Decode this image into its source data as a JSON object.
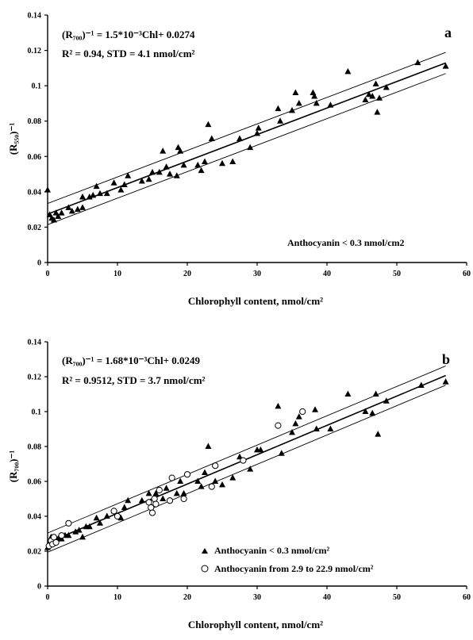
{
  "chart_data": [
    {
      "type": "scatter",
      "panel": "a",
      "xlabel": "Chlorophyll content, nmol/cm²",
      "ylabel": "(R₅₅₀)⁻¹",
      "xlim": [
        0,
        60
      ],
      "ylim": [
        0,
        0.14
      ],
      "xticks": [
        "0",
        "10",
        "20",
        "30",
        "40",
        "50",
        "60"
      ],
      "yticks": [
        "0",
        "0.02",
        "0.04",
        "0.06",
        "0.08",
        "0.1",
        "0.12",
        "0.14"
      ],
      "grid": false,
      "annotations": {
        "equation": "(R₇₀₀)⁻¹ = 1.5*10⁻³Chl+ 0.0274",
        "stats": "R² = 0.94, STD = 4.1 nmol/cm²",
        "note": "Anthocyanin < 0.3 nmol/cm2"
      },
      "fit": {
        "slope": 0.0015,
        "intercept": 0.0274,
        "band": 0.006
      },
      "series": [
        {
          "marker": "triangle",
          "points": [
            [
              0,
              0.041
            ],
            [
              0.3,
              0.027
            ],
            [
              0.6,
              0.025
            ],
            [
              0.9,
              0.024
            ],
            [
              1.2,
              0.028
            ],
            [
              1.5,
              0.026
            ],
            [
              2,
              0.028
            ],
            [
              3,
              0.031
            ],
            [
              3.5,
              0.029
            ],
            [
              4.3,
              0.03
            ],
            [
              5,
              0.031
            ],
            [
              5,
              0.037
            ],
            [
              6,
              0.037
            ],
            [
              6.5,
              0.038
            ],
            [
              7,
              0.043
            ],
            [
              7.5,
              0.039
            ],
            [
              8.5,
              0.039
            ],
            [
              9.5,
              0.045
            ],
            [
              10.5,
              0.041
            ],
            [
              11,
              0.044
            ],
            [
              11.5,
              0.049
            ],
            [
              13.5,
              0.046
            ],
            [
              14.5,
              0.047
            ],
            [
              15,
              0.051
            ],
            [
              16,
              0.051
            ],
            [
              16.5,
              0.063
            ],
            [
              17,
              0.054
            ],
            [
              17.5,
              0.05
            ],
            [
              18.5,
              0.049
            ],
            [
              18.7,
              0.065
            ],
            [
              19,
              0.063
            ],
            [
              19.5,
              0.055
            ],
            [
              21.5,
              0.055
            ],
            [
              22,
              0.052
            ],
            [
              22.5,
              0.057
            ],
            [
              23,
              0.078
            ],
            [
              23.5,
              0.07
            ],
            [
              25,
              0.056
            ],
            [
              26.5,
              0.057
            ],
            [
              27.5,
              0.07
            ],
            [
              29,
              0.065
            ],
            [
              30,
              0.073
            ],
            [
              30.2,
              0.076
            ],
            [
              33,
              0.087
            ],
            [
              33.3,
              0.08
            ],
            [
              35,
              0.086
            ],
            [
              35.5,
              0.096
            ],
            [
              36,
              0.09
            ],
            [
              38,
              0.096
            ],
            [
              38.2,
              0.094
            ],
            [
              38.5,
              0.09
            ],
            [
              40.5,
              0.089
            ],
            [
              43,
              0.108
            ],
            [
              45.5,
              0.092
            ],
            [
              46,
              0.095
            ],
            [
              46.5,
              0.094
            ],
            [
              47,
              0.101
            ],
            [
              47.2,
              0.085
            ],
            [
              47.5,
              0.093
            ],
            [
              48.5,
              0.099
            ],
            [
              53,
              0.113
            ],
            [
              57,
              0.111
            ]
          ]
        }
      ]
    },
    {
      "type": "scatter",
      "panel": "b",
      "xlabel": "Chlorophyll content, nmol/cm²",
      "ylabel": "(R₇₀₀)⁻¹",
      "xlim": [
        0,
        60
      ],
      "ylim": [
        0,
        0.14
      ],
      "xticks": [
        "0",
        "10",
        "20",
        "30",
        "40",
        "50",
        "60"
      ],
      "yticks": [
        "0",
        "0.02",
        "0.04",
        "0.06",
        "0.08",
        "0.1",
        "0.12",
        "0.14"
      ],
      "grid": false,
      "annotations": {
        "equation": "(R₇₀₀)⁻¹ = 1.68*10⁻³Chl+ 0.0249",
        "stats": "R² = 0.9512, STD = 3.7 nmol/cm²"
      },
      "fit": {
        "slope": 0.00168,
        "intercept": 0.0249,
        "band": 0.0055
      },
      "legend": {
        "position": "bottom-right",
        "entries": [
          {
            "marker": "triangle",
            "label": "Anthocyanin < 0.3 nmol/cm²"
          },
          {
            "marker": "circle",
            "label": "Anthocyanin from 2.9 to 22.9 nmol/cm²"
          }
        ]
      },
      "series": [
        {
          "marker": "triangle",
          "points": [
            [
              0,
              0.022
            ],
            [
              0.5,
              0.028
            ],
            [
              1,
              0.025
            ],
            [
              1.5,
              0.027
            ],
            [
              2,
              0.027
            ],
            [
              2.5,
              0.029
            ],
            [
              3,
              0.029
            ],
            [
              4,
              0.031
            ],
            [
              4.5,
              0.032
            ],
            [
              5,
              0.028
            ],
            [
              5.5,
              0.034
            ],
            [
              6,
              0.034
            ],
            [
              7,
              0.039
            ],
            [
              7.5,
              0.036
            ],
            [
              8.5,
              0.04
            ],
            [
              9.5,
              0.043
            ],
            [
              10.5,
              0.039
            ],
            [
              11,
              0.045
            ],
            [
              11.5,
              0.049
            ],
            [
              13.5,
              0.049
            ],
            [
              14.5,
              0.053
            ],
            [
              15.5,
              0.053
            ],
            [
              16.5,
              0.05
            ],
            [
              17,
              0.056
            ],
            [
              18.5,
              0.053
            ],
            [
              19,
              0.06
            ],
            [
              19.5,
              0.053
            ],
            [
              21.5,
              0.06
            ],
            [
              22,
              0.057
            ],
            [
              22.5,
              0.065
            ],
            [
              23,
              0.08
            ],
            [
              24,
              0.06
            ],
            [
              25,
              0.058
            ],
            [
              26.5,
              0.062
            ],
            [
              27.5,
              0.074
            ],
            [
              29,
              0.067
            ],
            [
              30,
              0.078
            ],
            [
              30.5,
              0.078
            ],
            [
              33,
              0.103
            ],
            [
              33.5,
              0.076
            ],
            [
              35,
              0.088
            ],
            [
              35.5,
              0.093
            ],
            [
              36,
              0.097
            ],
            [
              38.3,
              0.101
            ],
            [
              38.5,
              0.09
            ],
            [
              40.5,
              0.09
            ],
            [
              43,
              0.11
            ],
            [
              45.5,
              0.1
            ],
            [
              46.5,
              0.099
            ],
            [
              47,
              0.11
            ],
            [
              47.3,
              0.087
            ],
            [
              48.5,
              0.106
            ],
            [
              53.5,
              0.115
            ],
            [
              57,
              0.117
            ]
          ]
        },
        {
          "marker": "circle",
          "points": [
            [
              0.2,
              0.023
            ],
            [
              0.5,
              0.026
            ],
            [
              0.7,
              0.024
            ],
            [
              0.9,
              0.028
            ],
            [
              1.2,
              0.025
            ],
            [
              2,
              0.029
            ],
            [
              3,
              0.036
            ],
            [
              9.5,
              0.043
            ],
            [
              10,
              0.04
            ],
            [
              14.5,
              0.048
            ],
            [
              14.8,
              0.045
            ],
            [
              15,
              0.042
            ],
            [
              15.3,
              0.05
            ],
            [
              15.5,
              0.047
            ],
            [
              16,
              0.055
            ],
            [
              17.5,
              0.049
            ],
            [
              17.8,
              0.062
            ],
            [
              19.5,
              0.05
            ],
            [
              20,
              0.064
            ],
            [
              23.5,
              0.057
            ],
            [
              24,
              0.069
            ],
            [
              28,
              0.072
            ],
            [
              33,
              0.092
            ],
            [
              36.5,
              0.1
            ]
          ]
        }
      ]
    }
  ]
}
